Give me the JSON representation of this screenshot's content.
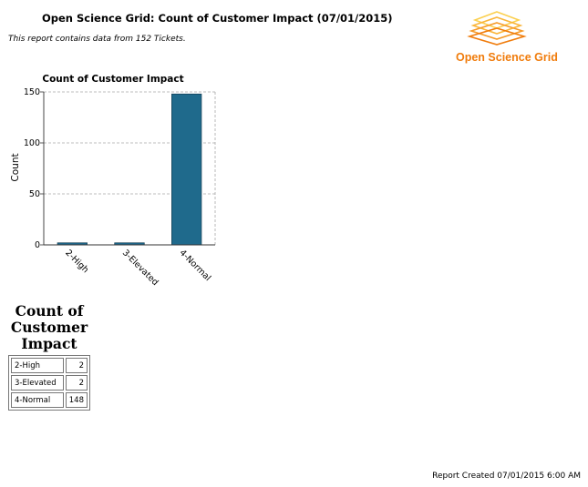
{
  "header": {
    "title": "Open Science Grid: Count of Customer Impact (07/01/2015)",
    "subtitle": "This report contains data from 152 Tickets."
  },
  "logo": {
    "text": "Open Science Grid",
    "color": "#f07c0c",
    "icon": "stacked-diamonds-logo"
  },
  "chart_data": {
    "type": "bar",
    "title": "Count of Customer Impact",
    "xlabel": "",
    "ylabel": "Count",
    "categories": [
      "2-High",
      "3-Elevated",
      "4-Normal"
    ],
    "values": [
      2,
      2,
      148
    ],
    "ylim": [
      0,
      150
    ],
    "yticks": [
      0,
      50,
      100,
      150
    ],
    "bar_color": "#1f6a8c",
    "grid": true,
    "legend": "none"
  },
  "table": {
    "caption": "Count of Customer Impact",
    "rows": [
      {
        "label": "2-High",
        "value": "2"
      },
      {
        "label": "3-Elevated",
        "value": "2"
      },
      {
        "label": "4-Normal",
        "value": "148"
      }
    ]
  },
  "footer": {
    "created": "Report Created 07/01/2015 6:00 AM"
  }
}
